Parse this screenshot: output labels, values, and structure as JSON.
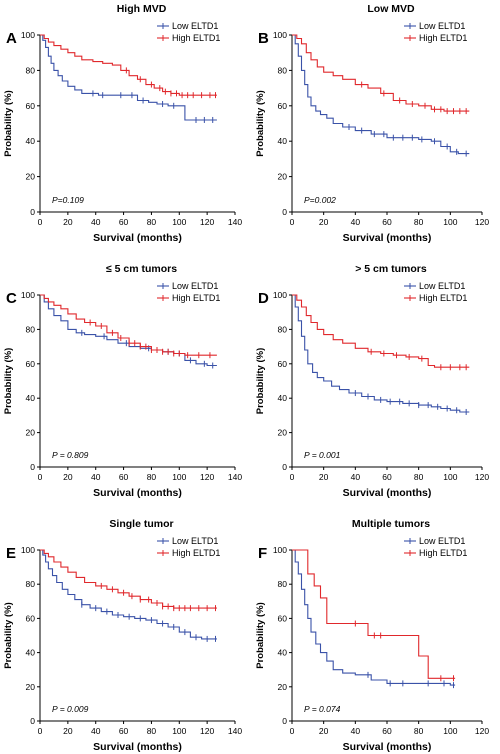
{
  "colors": {
    "low": "#3a52a8",
    "high": "#e0282c",
    "axis": "#000000"
  },
  "chart_data": [
    {
      "type": "line",
      "letter": "A",
      "title": "High MVD",
      "xlabel": "Survival (months)",
      "ylabel": "Probability (%)",
      "xlim": [
        0,
        140
      ],
      "ylim": [
        0,
        100
      ],
      "xticks": [
        0,
        20,
        40,
        60,
        80,
        100,
        120,
        140
      ],
      "yticks": [
        0,
        20,
        40,
        60,
        80,
        100
      ],
      "pvalue": "P=0.109",
      "legend_position": "top-right",
      "series": [
        {
          "name": "Low ELTD1",
          "color": "#3a52a8",
          "x": [
            0,
            2,
            4,
            6,
            8,
            10,
            13,
            16,
            20,
            25,
            30,
            36,
            42,
            50,
            56,
            62,
            70,
            78,
            84,
            92,
            98,
            104,
            110,
            120,
            127
          ],
          "y": [
            100,
            97,
            93,
            88,
            84,
            80,
            77,
            74,
            71,
            69,
            67,
            67,
            66,
            66,
            66,
            66,
            63,
            62,
            61,
            60,
            60,
            52,
            52,
            52,
            52
          ],
          "censors": [
            38,
            45,
            58,
            66,
            74,
            88,
            96,
            112,
            118,
            124
          ]
        },
        {
          "name": "High ELTD1",
          "color": "#e0282c",
          "x": [
            0,
            3,
            6,
            10,
            15,
            20,
            25,
            30,
            38,
            45,
            52,
            58,
            64,
            70,
            76,
            82,
            88,
            94,
            100,
            110,
            120,
            127
          ],
          "y": [
            100,
            98,
            96,
            94,
            92,
            90,
            88,
            86,
            85,
            84,
            83,
            80,
            77,
            75,
            72,
            70,
            68,
            67,
            66,
            66,
            66,
            66
          ],
          "censors": [
            62,
            72,
            80,
            86,
            90,
            94,
            98,
            102,
            106,
            110,
            116,
            122,
            126
          ]
        }
      ]
    },
    {
      "type": "line",
      "letter": "B",
      "title": "Low MVD",
      "xlabel": "Survival (months)",
      "ylabel": "Probability (%)",
      "xlim": [
        0,
        120
      ],
      "ylim": [
        0,
        100
      ],
      "xticks": [
        0,
        20,
        40,
        60,
        80,
        100,
        120
      ],
      "yticks": [
        0,
        20,
        40,
        60,
        80,
        100
      ],
      "pvalue": "P=0.002",
      "legend_position": "top-right",
      "series": [
        {
          "name": "Low ELTD1",
          "color": "#3a52a8",
          "x": [
            0,
            2,
            4,
            6,
            8,
            10,
            12,
            15,
            18,
            22,
            26,
            32,
            40,
            50,
            60,
            70,
            80,
            88,
            94,
            100,
            105,
            112
          ],
          "y": [
            100,
            95,
            88,
            80,
            72,
            65,
            60,
            57,
            55,
            53,
            50,
            48,
            46,
            44,
            42,
            42,
            41,
            40,
            37,
            34,
            33,
            33
          ],
          "censors": [
            36,
            44,
            52,
            58,
            64,
            70,
            76,
            82,
            90,
            98,
            104,
            110
          ]
        },
        {
          "name": "High ELTD1",
          "color": "#e0282c",
          "x": [
            0,
            3,
            6,
            9,
            12,
            16,
            20,
            26,
            32,
            40,
            48,
            56,
            64,
            72,
            80,
            88,
            96,
            104,
            112
          ],
          "y": [
            100,
            98,
            95,
            90,
            86,
            82,
            79,
            77,
            75,
            72,
            70,
            67,
            63,
            61,
            60,
            58,
            57,
            57,
            57
          ],
          "censors": [
            44,
            58,
            68,
            76,
            84,
            90,
            94,
            98,
            102,
            106,
            110
          ]
        }
      ]
    },
    {
      "type": "line",
      "letter": "C",
      "title": "≤ 5 cm tumors",
      "xlabel": "Survival (months)",
      "ylabel": "Probability (%)",
      "xlim": [
        0,
        140
      ],
      "ylim": [
        0,
        100
      ],
      "xticks": [
        0,
        20,
        40,
        60,
        80,
        100,
        120,
        140
      ],
      "yticks": [
        0,
        20,
        40,
        60,
        80,
        100
      ],
      "pvalue": "P = 0.809",
      "legend_position": "top-right",
      "series": [
        {
          "name": "Low ELTD1",
          "color": "#3a52a8",
          "x": [
            0,
            3,
            6,
            10,
            15,
            20,
            26,
            32,
            40,
            48,
            56,
            64,
            72,
            80,
            88,
            96,
            104,
            112,
            120,
            127
          ],
          "y": [
            100,
            96,
            92,
            88,
            85,
            80,
            78,
            77,
            76,
            74,
            72,
            70,
            69,
            68,
            67,
            66,
            62,
            60,
            59,
            59
          ],
          "censors": [
            30,
            46,
            62,
            78,
            92,
            100,
            108,
            118,
            124
          ]
        },
        {
          "name": "High ELTD1",
          "color": "#e0282c",
          "x": [
            0,
            3,
            6,
            10,
            15,
            20,
            26,
            32,
            40,
            48,
            56,
            64,
            72,
            80,
            88,
            96,
            104,
            112,
            120,
            127
          ],
          "y": [
            100,
            98,
            96,
            94,
            92,
            89,
            86,
            84,
            82,
            78,
            75,
            72,
            70,
            68,
            67,
            66,
            65,
            65,
            65,
            65
          ],
          "censors": [
            36,
            44,
            52,
            58,
            64,
            68,
            72,
            76,
            80,
            84,
            88,
            92,
            96,
            100,
            106,
            114,
            122
          ]
        }
      ]
    },
    {
      "type": "line",
      "letter": "D",
      "title": "> 5 cm tumors",
      "xlabel": "Survival (months)",
      "ylabel": "Probability (%)",
      "xlim": [
        0,
        120
      ],
      "ylim": [
        0,
        100
      ],
      "xticks": [
        0,
        20,
        40,
        60,
        80,
        100,
        120
      ],
      "yticks": [
        0,
        20,
        40,
        60,
        80,
        100
      ],
      "pvalue": "P = 0.001",
      "legend_position": "top-right",
      "series": [
        {
          "name": "Low ELTD1",
          "color": "#3a52a8",
          "x": [
            0,
            2,
            4,
            6,
            8,
            10,
            13,
            16,
            20,
            25,
            30,
            36,
            44,
            52,
            60,
            70,
            80,
            88,
            94,
            100,
            106,
            112
          ],
          "y": [
            100,
            93,
            85,
            76,
            68,
            60,
            55,
            52,
            50,
            47,
            45,
            43,
            41,
            39,
            38,
            37,
            36,
            35,
            34,
            33,
            32,
            32
          ],
          "censors": [
            40,
            48,
            56,
            62,
            68,
            74,
            80,
            86,
            92,
            98,
            104,
            110
          ]
        },
        {
          "name": "High ELTD1",
          "color": "#e0282c",
          "x": [
            0,
            3,
            6,
            9,
            12,
            16,
            20,
            26,
            32,
            40,
            48,
            56,
            64,
            72,
            80,
            86,
            90,
            100,
            112
          ],
          "y": [
            100,
            97,
            93,
            88,
            84,
            80,
            77,
            74,
            72,
            69,
            67,
            66,
            65,
            64,
            63,
            59,
            58,
            58,
            58
          ],
          "censors": [
            50,
            58,
            66,
            74,
            82,
            94,
            100,
            106,
            110
          ]
        }
      ]
    },
    {
      "type": "line",
      "letter": "E",
      "title": "Single tumor",
      "xlabel": "Survival (months)",
      "ylabel": "Probability (%)",
      "xlim": [
        0,
        140
      ],
      "ylim": [
        0,
        100
      ],
      "xticks": [
        0,
        20,
        40,
        60,
        80,
        100,
        120,
        140
      ],
      "yticks": [
        0,
        20,
        40,
        60,
        80,
        100
      ],
      "pvalue": "P = 0.009",
      "legend_position": "top-right",
      "series": [
        {
          "name": "Low ELTD1",
          "color": "#3a52a8",
          "x": [
            0,
            2,
            4,
            6,
            9,
            12,
            16,
            20,
            25,
            30,
            36,
            44,
            52,
            60,
            68,
            76,
            84,
            92,
            100,
            108,
            116,
            127
          ],
          "y": [
            100,
            97,
            93,
            89,
            85,
            81,
            77,
            74,
            71,
            68,
            66,
            64,
            62,
            61,
            60,
            59,
            57,
            55,
            52,
            49,
            48,
            48
          ],
          "censors": [
            30,
            40,
            48,
            56,
            64,
            72,
            80,
            88,
            96,
            104,
            112,
            120,
            126
          ]
        },
        {
          "name": "High ELTD1",
          "color": "#e0282c",
          "x": [
            0,
            3,
            6,
            10,
            15,
            20,
            26,
            32,
            40,
            48,
            56,
            64,
            72,
            80,
            88,
            96,
            104,
            112,
            120,
            127
          ],
          "y": [
            100,
            98,
            96,
            93,
            90,
            87,
            84,
            81,
            79,
            77,
            75,
            73,
            71,
            69,
            67,
            66,
            66,
            66,
            66,
            66
          ],
          "censors": [
            44,
            52,
            60,
            66,
            72,
            78,
            84,
            88,
            92,
            96,
            100,
            104,
            108,
            114,
            120,
            126
          ]
        }
      ]
    },
    {
      "type": "line",
      "letter": "F",
      "title": "Multiple tumors",
      "xlabel": "Survival (months)",
      "ylabel": "Probability (%)",
      "xlim": [
        0,
        120
      ],
      "ylim": [
        0,
        100
      ],
      "xticks": [
        0,
        20,
        40,
        60,
        80,
        100,
        120
      ],
      "yticks": [
        0,
        20,
        40,
        60,
        80,
        100
      ],
      "pvalue": "P = 0.074",
      "legend_position": "top-right",
      "series": [
        {
          "name": "Low ELTD1",
          "color": "#3a52a8",
          "x": [
            0,
            2,
            4,
            6,
            8,
            10,
            12,
            15,
            18,
            22,
            26,
            32,
            40,
            50,
            60,
            80,
            100,
            103
          ],
          "y": [
            100,
            93,
            86,
            77,
            68,
            60,
            52,
            45,
            40,
            35,
            30,
            28,
            27,
            24,
            22,
            22,
            21,
            21
          ],
          "censors": [
            48,
            62,
            70,
            86,
            96,
            102
          ]
        },
        {
          "name": "High ELTD1",
          "color": "#e0282c",
          "x": [
            0,
            6,
            10,
            14,
            18,
            22,
            34,
            48,
            76,
            80,
            86,
            100,
            103
          ],
          "y": [
            100,
            100,
            86,
            79,
            72,
            57,
            57,
            50,
            50,
            38,
            25,
            25,
            25
          ],
          "censors": [
            40,
            52,
            56,
            94,
            102
          ]
        }
      ]
    }
  ]
}
